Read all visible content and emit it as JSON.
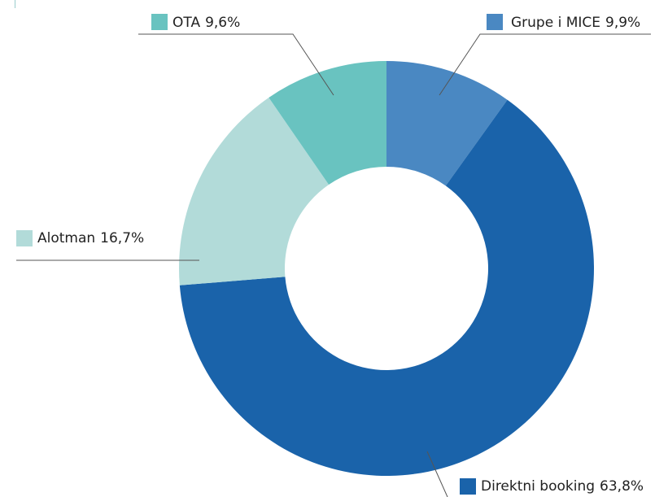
{
  "chart_data": {
    "type": "donut",
    "categories": [
      "Grupe i MICE",
      "Direktni booking",
      "Alotman",
      "OTA"
    ],
    "values": [
      9.9,
      63.8,
      16.7,
      9.6
    ],
    "value_labels": [
      "9,9%",
      "63,8%",
      "16,7%",
      "9,6%"
    ],
    "colors": [
      "#4a88c2",
      "#1a63aa",
      "#b2dbd9",
      "#69c3c0"
    ]
  }
}
